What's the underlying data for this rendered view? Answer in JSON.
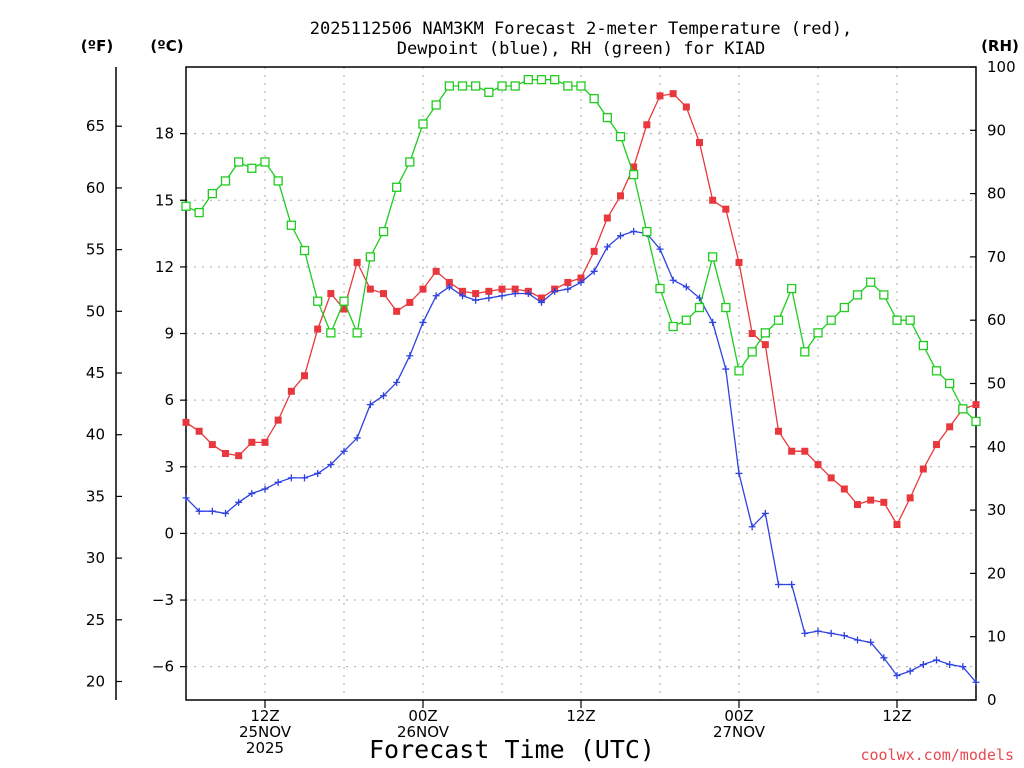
{
  "chart_data": {
    "type": "line",
    "title_line1": "2025112506 NAM3KM Forecast 2-meter Temperature (red),",
    "title_line2": "Dewpoint (blue), RH (green) for KIAD",
    "left_unit_f": "(ºF)",
    "left_unit_c": "(ºC)",
    "right_unit": "(RH)",
    "xlabel": "Forecast Time (UTC)",
    "credit": "coolwx.com/models",
    "x_range_hours": [
      -6,
      54
    ],
    "ylim_c": [
      -7.5,
      21
    ],
    "ylim_rh": [
      0,
      100
    ],
    "c_ticks": [
      "−6",
      "−3",
      "0",
      "3",
      "6",
      "9",
      "12",
      "15",
      "18"
    ],
    "c_tick_values": [
      -6,
      -3,
      0,
      3,
      6,
      9,
      12,
      15,
      18
    ],
    "f_ticks": [
      "20",
      "25",
      "30",
      "35",
      "40",
      "45",
      "50",
      "55",
      "60",
      "65"
    ],
    "f_tick_values": [
      20,
      25,
      30,
      35,
      40,
      45,
      50,
      55,
      60,
      65
    ],
    "rh_ticks": [
      "0",
      "10",
      "20",
      "30",
      "40",
      "50",
      "60",
      "70",
      "80",
      "90",
      "100"
    ],
    "rh_tick_values": [
      0,
      10,
      20,
      30,
      40,
      50,
      60,
      70,
      80,
      90,
      100
    ],
    "x_ticks": [
      {
        "hour": 0,
        "lines": [
          "12Z",
          "25NOV",
          "2025"
        ]
      },
      {
        "hour": 12,
        "lines": [
          "00Z",
          "26NOV"
        ]
      },
      {
        "hour": 24,
        "lines": [
          "12Z"
        ]
      },
      {
        "hour": 36,
        "lines": [
          "00Z",
          "27NOV"
        ]
      },
      {
        "hour": 48,
        "lines": [
          "12Z"
        ]
      }
    ],
    "series": [
      {
        "name": "Temperature",
        "unit": "C",
        "color": "#e8383d",
        "marker": "filled-square",
        "hours": [
          -6,
          -5,
          -4,
          -3,
          -2,
          -1,
          0,
          1,
          2,
          3,
          4,
          5,
          6,
          7,
          8,
          9,
          10,
          11,
          12,
          13,
          14,
          15,
          16,
          17,
          18,
          19,
          20,
          21,
          22,
          23,
          24,
          25,
          26,
          27,
          28,
          29,
          30,
          31,
          32,
          33,
          34,
          35,
          36,
          37,
          38,
          39,
          40,
          41,
          42,
          43,
          44,
          45,
          46,
          47,
          48,
          49,
          50,
          51,
          52,
          53,
          54
        ],
        "values": [
          5.0,
          4.6,
          4.0,
          3.6,
          3.5,
          4.1,
          4.1,
          5.1,
          6.4,
          7.1,
          9.2,
          10.8,
          10.1,
          12.2,
          11.0,
          10.8,
          10.0,
          10.4,
          11.0,
          11.8,
          11.3,
          10.9,
          10.8,
          10.9,
          11.0,
          11.0,
          10.9,
          10.6,
          11.0,
          11.3,
          11.5,
          12.7,
          14.2,
          15.2,
          16.5,
          18.4,
          19.7,
          19.8,
          19.2,
          17.6,
          15.0,
          14.6,
          12.2,
          9.0,
          8.5,
          4.6,
          3.7,
          3.7,
          3.1,
          2.5,
          2.0,
          1.3,
          1.5,
          1.4,
          0.4,
          1.6,
          2.9,
          4.0,
          4.8,
          5.6,
          5.8
        ]
      },
      {
        "name": "Dewpoint",
        "unit": "C",
        "color": "#2e42e0",
        "marker": "plus",
        "hours": [
          -6,
          -5,
          -4,
          -3,
          -2,
          -1,
          0,
          1,
          2,
          3,
          4,
          5,
          6,
          7,
          8,
          9,
          10,
          11,
          12,
          13,
          14,
          15,
          16,
          17,
          18,
          19,
          20,
          21,
          22,
          23,
          24,
          25,
          26,
          27,
          28,
          29,
          30,
          31,
          32,
          33,
          34,
          35,
          36,
          37,
          38,
          39,
          40,
          41,
          42,
          43,
          44,
          45,
          46,
          47,
          48,
          49,
          50,
          51,
          52,
          53,
          54
        ],
        "values": [
          1.6,
          1.0,
          1.0,
          0.9,
          1.4,
          1.8,
          2.0,
          2.3,
          2.5,
          2.5,
          2.7,
          3.1,
          3.7,
          4.3,
          5.8,
          6.2,
          6.8,
          8.0,
          9.5,
          10.7,
          11.1,
          10.7,
          10.5,
          10.6,
          10.7,
          10.8,
          10.8,
          10.4,
          10.9,
          11.0,
          11.3,
          11.8,
          12.9,
          13.4,
          13.6,
          13.5,
          12.8,
          11.4,
          11.1,
          10.6,
          9.5,
          7.4,
          2.7,
          0.3,
          0.9,
          -2.3,
          -2.3,
          -4.5,
          -4.4,
          -4.5,
          -4.6,
          -4.8,
          -4.9,
          -5.6,
          -6.4,
          -6.2,
          -5.9,
          -5.7,
          -5.9,
          -6.0,
          -6.7
        ]
      },
      {
        "name": "RH",
        "unit": "%",
        "color": "#1fcc1f",
        "marker": "open-square",
        "hours": [
          -6,
          -5,
          -4,
          -3,
          -2,
          -1,
          0,
          1,
          2,
          3,
          4,
          5,
          6,
          7,
          8,
          9,
          10,
          11,
          12,
          13,
          14,
          15,
          16,
          17,
          18,
          19,
          20,
          21,
          22,
          23,
          24,
          25,
          26,
          27,
          28,
          29,
          30,
          31,
          32,
          33,
          34,
          35,
          36,
          37,
          38,
          39,
          40,
          41,
          42,
          43,
          44,
          45,
          46,
          47,
          48,
          49,
          50,
          51,
          52,
          53,
          54
        ],
        "values": [
          78,
          77,
          80,
          82,
          85,
          84,
          85,
          82,
          75,
          71,
          63,
          58,
          63,
          58,
          70,
          74,
          81,
          85,
          91,
          94,
          97,
          97,
          97,
          96,
          97,
          97,
          98,
          98,
          98,
          97,
          97,
          95,
          92,
          89,
          83,
          74,
          65,
          59,
          60,
          62,
          70,
          62,
          52,
          55,
          58,
          60,
          65,
          55,
          58,
          60,
          62,
          64,
          66,
          64,
          60,
          60,
          56,
          52,
          50,
          46,
          44
        ]
      }
    ]
  }
}
